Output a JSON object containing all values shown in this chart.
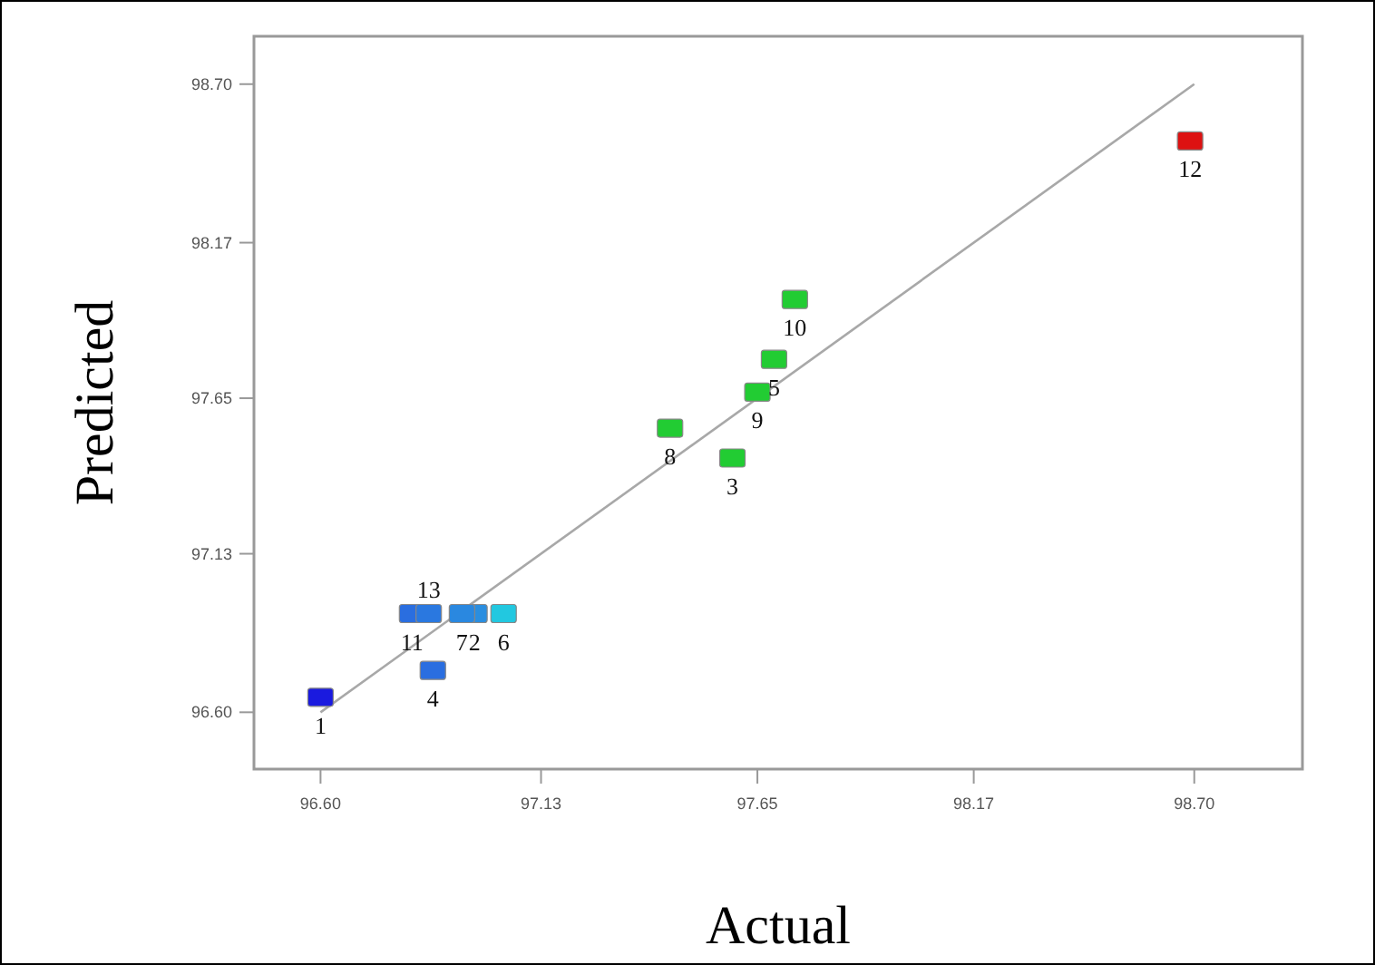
{
  "chart_data": {
    "type": "scatter",
    "xlabel": "Actual",
    "ylabel": "Predicted",
    "xlim": [
      96.44,
      98.96
    ],
    "ylim": [
      96.41,
      98.86
    ],
    "xticks": [
      {
        "value": 96.6,
        "label": "96.60"
      },
      97.13,
      97.65,
      98.17,
      {
        "value": 98.7,
        "label": "98.70"
      }
    ],
    "yticks": [
      {
        "value": 96.6,
        "label": "96.60"
      },
      97.13,
      97.65,
      98.17,
      {
        "value": 98.7,
        "label": "98.70"
      }
    ],
    "grid": false,
    "legend": false,
    "series": [
      {
        "type": "line",
        "color": "#a8a8a8",
        "marker": "none",
        "x": [
          96.6,
          98.7
        ],
        "values": [
          96.6,
          98.7
        ]
      },
      {
        "type": "scatter",
        "marker": "square",
        "x": [
          96.6,
          96.97,
          97.59,
          96.87,
          97.69,
          97.04,
          96.94,
          97.44,
          97.65,
          97.74,
          96.82,
          98.69,
          96.86
        ],
        "values": [
          96.65,
          96.93,
          97.45,
          96.74,
          97.78,
          96.93,
          96.93,
          97.55,
          97.67,
          97.98,
          96.93,
          98.51,
          96.93
        ],
        "colors": [
          "#1a1adf",
          "#2a8ee0",
          "#22cc33",
          "#2a6ee0",
          "#22cc33",
          "#22c8e0",
          "#2a88e0",
          "#22cc33",
          "#22cc33",
          "#22cc33",
          "#2a6ee0",
          "#dd1111",
          "#2a78e0"
        ]
      }
    ],
    "annotations": [
      {
        "text": "10",
        "x": 97.74,
        "y": 97.98
      },
      {
        "text": "11",
        "x": 96.82,
        "y": 96.93
      },
      {
        "text": "12",
        "x": 98.69,
        "y": 98.51
      },
      {
        "text": "13",
        "x": 96.86,
        "y": 96.93
      },
      {
        "text": "1",
        "x": 96.6,
        "y": 96.65
      },
      {
        "text": "2",
        "x": 96.97,
        "y": 96.93
      },
      {
        "text": "3",
        "x": 97.59,
        "y": 97.45
      },
      {
        "text": "4",
        "x": 96.87,
        "y": 96.74
      },
      {
        "text": "5",
        "x": 97.69,
        "y": 97.78
      },
      {
        "text": "6",
        "x": 97.04,
        "y": 96.93
      },
      {
        "text": "7",
        "x": 96.94,
        "y": 96.93
      },
      {
        "text": "8",
        "x": 97.44,
        "y": 97.55
      },
      {
        "text": "9",
        "x": 97.65,
        "y": 97.67
      }
    ]
  }
}
